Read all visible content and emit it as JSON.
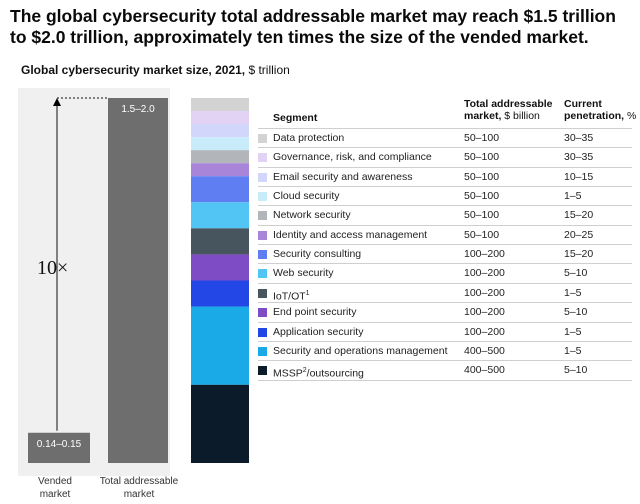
{
  "header": {
    "headline": "The global cybersecurity total addressable market may reach $1.5 trillion to $2.0 trillion, approximately ten times the size of the vended market.",
    "subtitle_main": "Global cybersecurity market size, 2021,",
    "subtitle_unit": "$ trillion"
  },
  "chart_data": {
    "type": "bar",
    "title": "Global cybersecurity market size, 2021, $ trillion",
    "categories": [
      "Vended market",
      "Total addressable market"
    ],
    "value_labels": [
      "0.14–0.15",
      "1.5–2.0"
    ],
    "values": [
      0.145,
      1.75
    ],
    "multiplier_label": "10×",
    "colors": {
      "bar": "#6e6e6e",
      "panel": "#f0f0f0"
    },
    "stack": {
      "columns": [
        "Segment",
        "Total addressable market, $ billion",
        "Current penetration, %"
      ],
      "headers": {
        "segment": "Segment",
        "tam": "Total addressable",
        "tam2": "market,",
        "tam_unit": "$ billion",
        "pen": "Current",
        "pen2": "penetration,",
        "pen_unit": "%"
      },
      "segments": [
        {
          "name": "Data protection",
          "sup": "",
          "tam": "50–100",
          "tam_mid": 75,
          "penetration": "30–35",
          "color": "#d3d3d3"
        },
        {
          "name": "Governance, risk, and compliance",
          "sup": "",
          "tam": "50–100",
          "tam_mid": 75,
          "penetration": "30–35",
          "color": "#e2d2f4"
        },
        {
          "name": "Email security and awareness",
          "sup": "",
          "tam": "50–100",
          "tam_mid": 75,
          "penetration": "10–15",
          "color": "#d2d6fa"
        },
        {
          "name": "Cloud security",
          "sup": "",
          "tam": "50–100",
          "tam_mid": 75,
          "penetration": "1–5",
          "color": "#c9ecfb"
        },
        {
          "name": "Network security",
          "sup": "",
          "tam": "50–100",
          "tam_mid": 75,
          "penetration": "15–20",
          "color": "#b2b6ba"
        },
        {
          "name": "Identity and access management",
          "sup": "",
          "tam": "50–100",
          "tam_mid": 75,
          "penetration": "20–25",
          "color": "#a985d9"
        },
        {
          "name": "Security consulting",
          "sup": "",
          "tam": "100–200",
          "tam_mid": 150,
          "penetration": "15–20",
          "color": "#5f7ef2"
        },
        {
          "name": "Web security",
          "sup": "",
          "tam": "100–200",
          "tam_mid": 150,
          "penetration": "5–10",
          "color": "#52c5f5"
        },
        {
          "name": "IoT/OT",
          "sup": "1",
          "tam": "100–200",
          "tam_mid": 150,
          "penetration": "1–5",
          "color": "#47565e"
        },
        {
          "name": "End point security",
          "sup": "",
          "tam": "100–200",
          "tam_mid": 150,
          "penetration": "5–10",
          "color": "#7e4cc4"
        },
        {
          "name": "Application security",
          "sup": "",
          "tam": "100–200",
          "tam_mid": 150,
          "penetration": "1–5",
          "color": "#2346e6"
        },
        {
          "name": "Security and operations management",
          "sup": "",
          "tam": "400–500",
          "tam_mid": 450,
          "penetration": "1–5",
          "color": "#1aaae8"
        },
        {
          "name": "MSSP",
          "sup": "2",
          "suffix": "/outsourcing",
          "tam": "400–500",
          "tam_mid": 450,
          "penetration": "5–10",
          "color": "#0c1b29"
        }
      ]
    }
  }
}
